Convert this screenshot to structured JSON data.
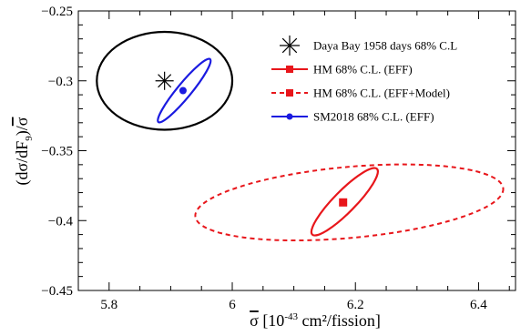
{
  "chart_data": {
    "type": "scatter",
    "xlabel": {
      "symbol": "σ",
      "pre": " [10",
      "exp": "-43",
      "post": " cm²/fission]"
    },
    "ylabel": {
      "pre": "(dσ/dF",
      "sub": "9",
      "post": ")/",
      "bar": "σ"
    },
    "xlim": [
      5.75,
      6.46
    ],
    "ylim": [
      -0.45,
      -0.25
    ],
    "x_ticks": [
      5.8,
      6.0,
      6.2,
      6.4
    ],
    "x_tick_labels": [
      "5.8",
      "6",
      "6.2",
      "6.4"
    ],
    "y_ticks": [
      -0.45,
      -0.4,
      -0.35,
      -0.3,
      -0.25
    ],
    "y_tick_labels": [
      "−0.45",
      "−0.4",
      "−0.35",
      "−0.3",
      "−0.25"
    ],
    "grid": false,
    "legend_position": "top-right",
    "series": [
      {
        "name": "Daya Bay 1958 days 68% C.L",
        "color": "#000000",
        "marker": "asterisk",
        "line_style": "solid",
        "point": [
          5.89,
          -0.3
        ],
        "ellipse": {
          "cx": 5.89,
          "cy": -0.3,
          "rx": 0.11,
          "ry": 0.035,
          "angle_deg": 0
        }
      },
      {
        "name": "HM 68% C.L. (EFF)",
        "color": "#e8161b",
        "marker": "square",
        "line_style": "solid",
        "point": [
          6.18,
          -0.387
        ],
        "ellipse": {
          "cx": 6.18,
          "cy": -0.387,
          "major_end_a": [
            6.13,
            -0.41
          ],
          "major_end_b": [
            6.235,
            -0.363
          ],
          "minor_halfwidth": 0.011
        }
      },
      {
        "name": "HM 68% C.L. (EFF+Model)",
        "color": "#e8161b",
        "marker": "square",
        "line_style": "dashed",
        "point": [
          6.18,
          -0.387
        ],
        "ellipse": {
          "cx": 6.19,
          "cy": -0.387,
          "major_end_a": [
            5.94,
            -0.397
          ],
          "major_end_b": [
            6.44,
            -0.377
          ],
          "minor_halfwidth": 0.0255
        }
      },
      {
        "name": "SM2018 68% C.L. (EFF)",
        "color": "#1a1ae0",
        "marker": "circle",
        "line_style": "solid",
        "point": [
          5.92,
          -0.307
        ],
        "ellipse": {
          "cx": 5.922,
          "cy": -0.307,
          "major_end_a": [
            5.88,
            -0.3295
          ],
          "major_end_b": [
            5.964,
            -0.2845
          ],
          "minor_halfwidth": 0.008
        }
      }
    ]
  }
}
